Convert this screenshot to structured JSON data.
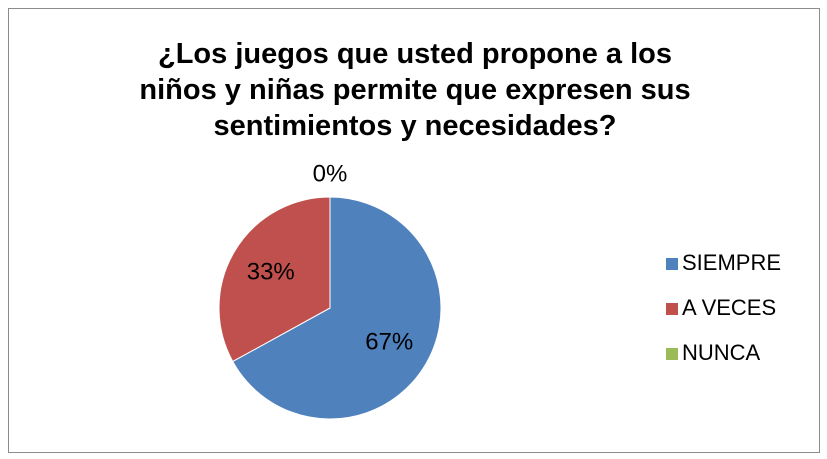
{
  "chart_data": {
    "type": "pie",
    "title_lines": [
      "¿Los juegos que usted propone a los",
      "niños y niñas permite que expresen sus",
      "sentimientos y necesidades?"
    ],
    "categories": [
      "SIEMPRE",
      "A VECES",
      "NUNCA"
    ],
    "values": [
      67,
      33,
      0
    ],
    "data_labels": [
      "67%",
      "33%",
      "0%"
    ],
    "colors": [
      "#4F81BD",
      "#C0504D",
      "#9BBB59"
    ],
    "legend_position": "right"
  }
}
